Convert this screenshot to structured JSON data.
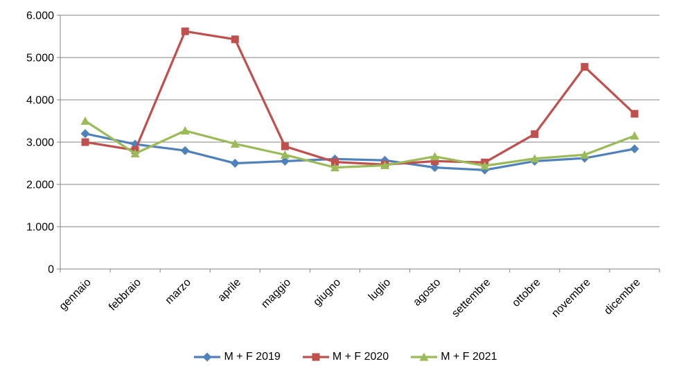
{
  "chart_data": {
    "type": "line",
    "title": "",
    "xlabel": "",
    "ylabel": "",
    "categories": [
      "gennaio",
      "febbraio",
      "marzo",
      "aprile",
      "maggio",
      "giugno",
      "luglio",
      "agosto",
      "settembre",
      "ottobre",
      "novembre",
      "dicembre"
    ],
    "series": [
      {
        "name": "M + F 2019",
        "color": "#4F81BD",
        "marker": "diamond",
        "values": [
          3200,
          2950,
          2800,
          2500,
          2550,
          2600,
          2570,
          2400,
          2340,
          2550,
          2620,
          2840
        ]
      },
      {
        "name": "M + F 2020",
        "color": "#C0504D",
        "marker": "square",
        "values": [
          3000,
          2810,
          5620,
          5430,
          2900,
          2530,
          2470,
          2550,
          2520,
          3190,
          4780,
          3670
        ]
      },
      {
        "name": "M + F 2021",
        "color": "#9BBB59",
        "marker": "triangle",
        "values": [
          3500,
          2730,
          3270,
          2960,
          2700,
          2400,
          2450,
          2660,
          2440,
          2610,
          2700,
          3150
        ]
      }
    ],
    "ylim": [
      0,
      6000
    ],
    "y_ticks": [
      {
        "value": 0,
        "label": "0"
      },
      {
        "value": 1000,
        "label": "1.000"
      },
      {
        "value": 2000,
        "label": "2.000"
      },
      {
        "value": 3000,
        "label": "3.000"
      },
      {
        "value": 4000,
        "label": "4.000"
      },
      {
        "value": 5000,
        "label": "5.000"
      },
      {
        "value": 6000,
        "label": "6.000"
      }
    ],
    "grid": "horizontal",
    "legend_position": "bottom",
    "gridline_color": "#808080",
    "axis_color": "#808080",
    "text_color": "#000000",
    "background_color": "#FFFFFF"
  }
}
